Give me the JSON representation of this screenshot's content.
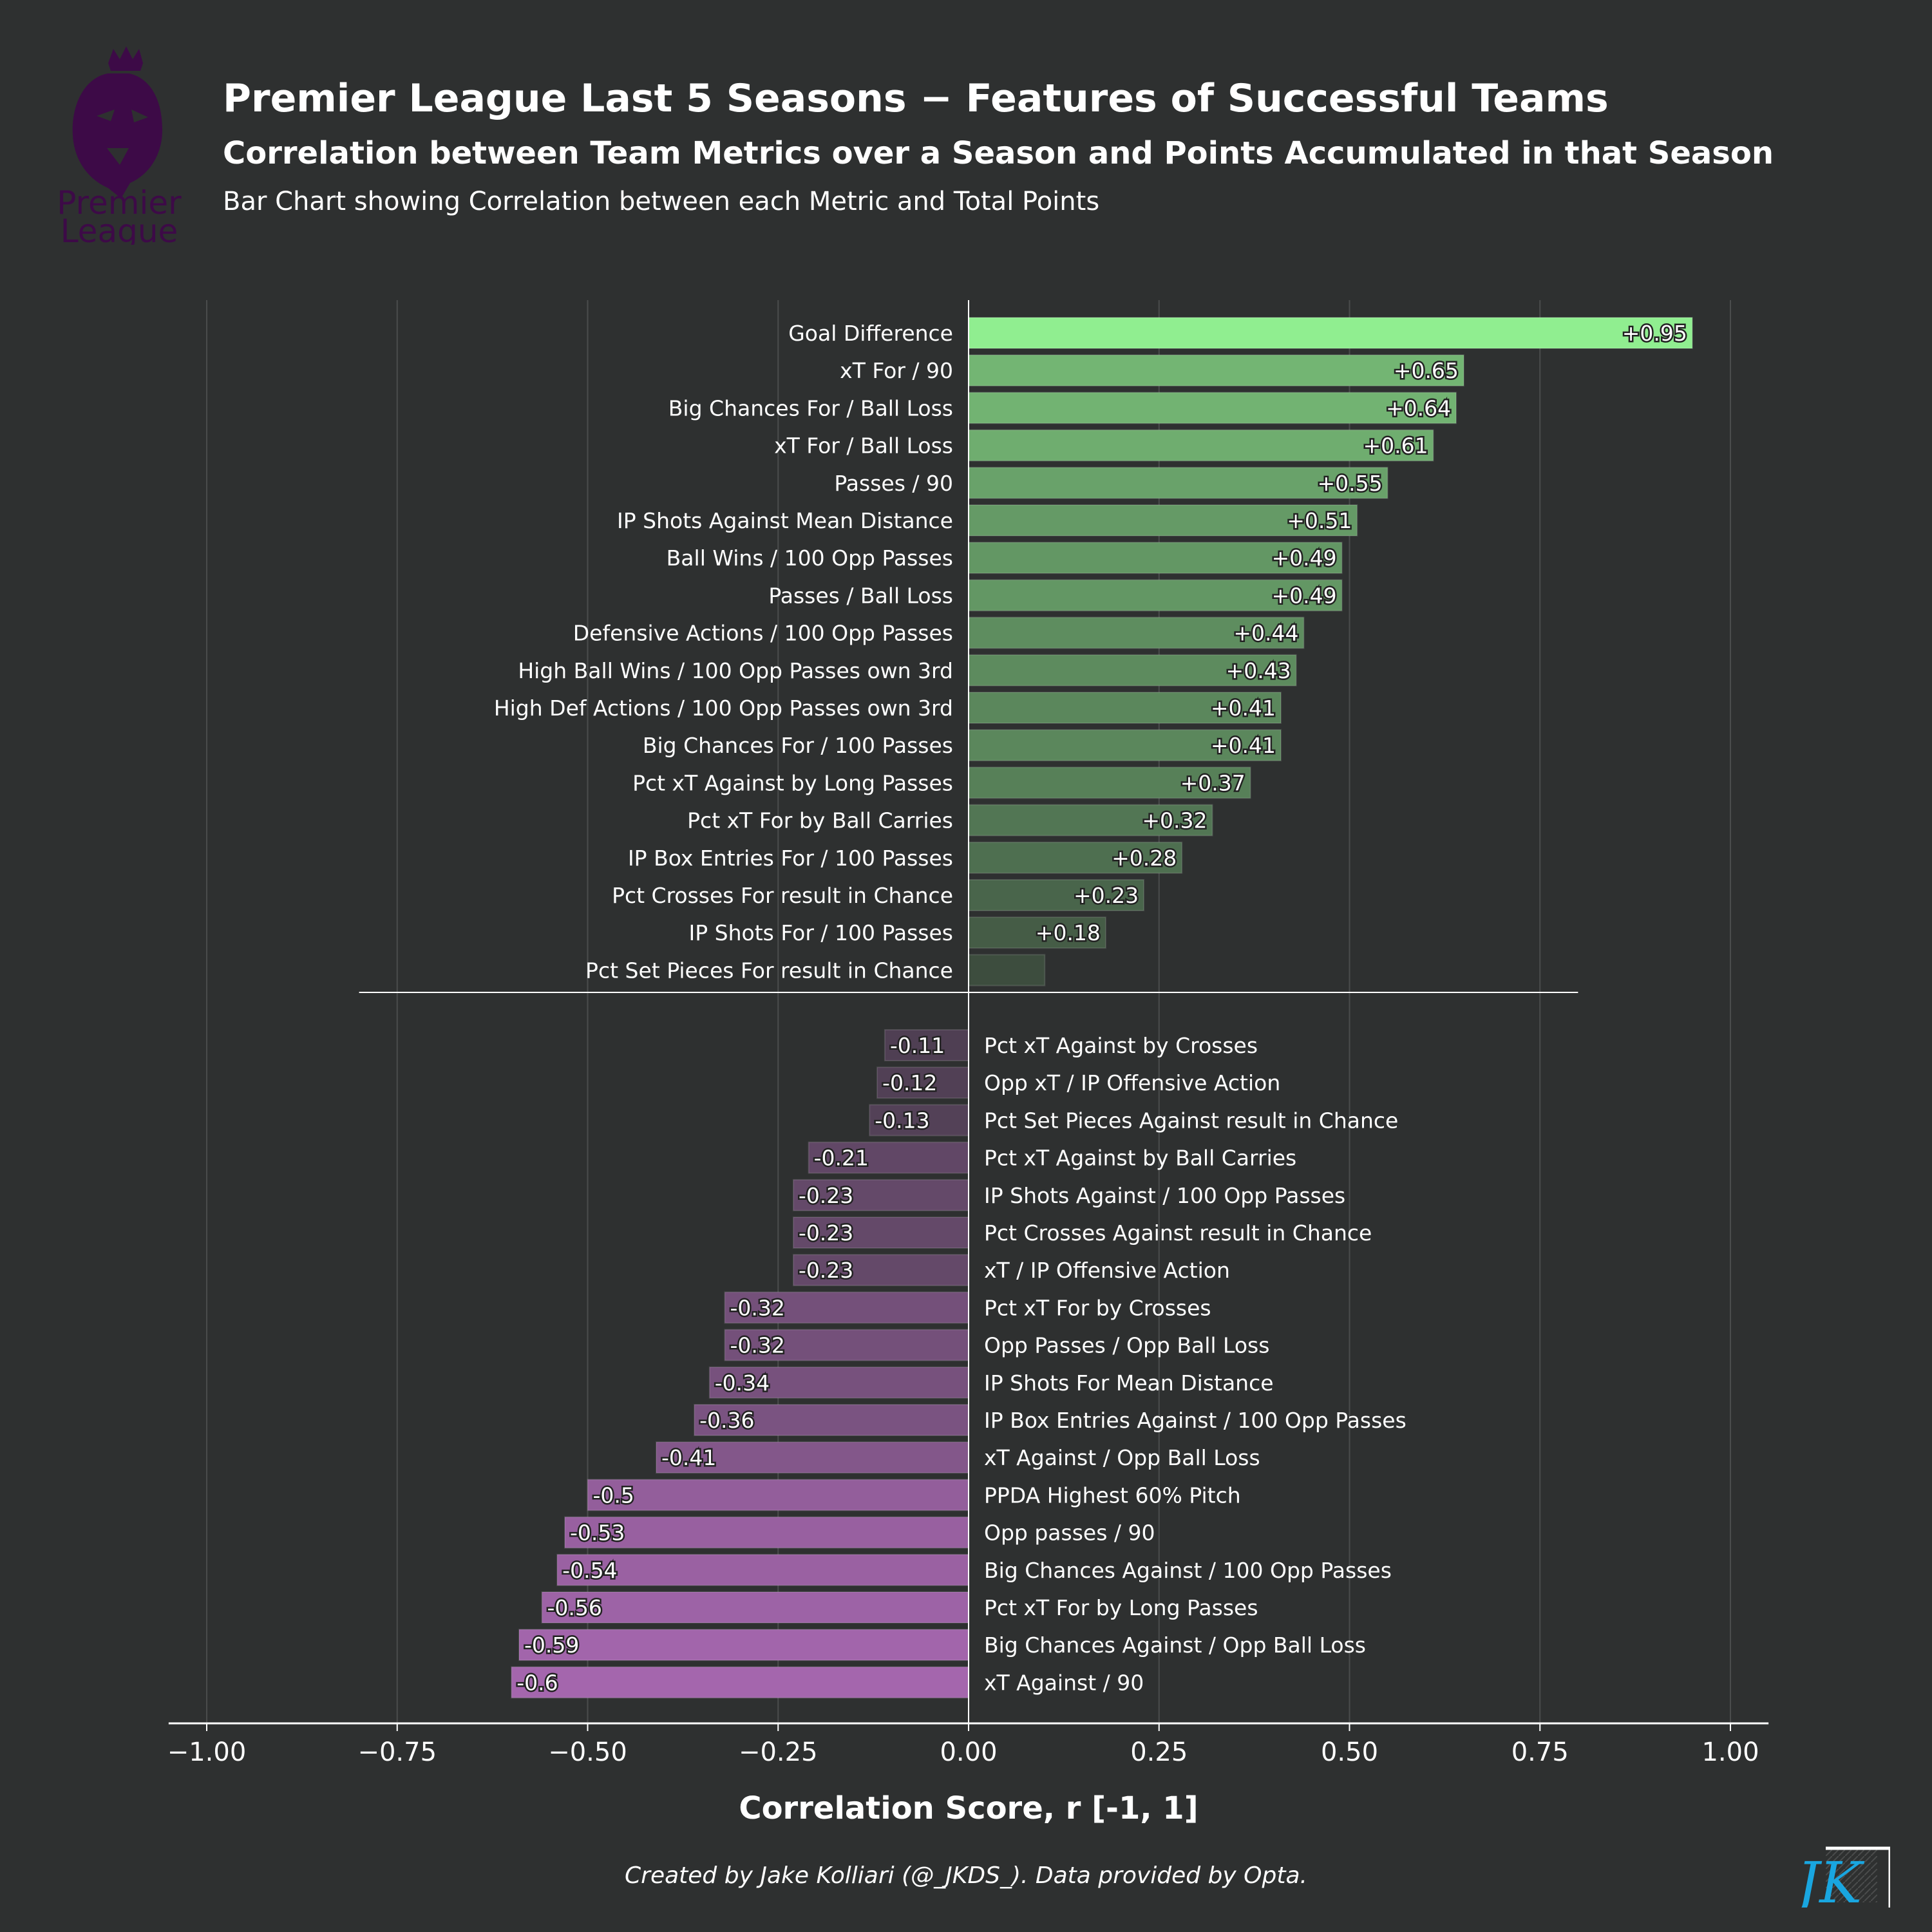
{
  "header": {
    "title": "Premier League Last 5 Seasons − Features of Successful Teams",
    "subtitle": "Correlation between Team Metrics over a Season and Points Accumulated in that Season",
    "description": "Bar Chart showing Correlation between each Metric and Total Points"
  },
  "logo": {
    "line1": "Premier",
    "line2": "League",
    "color": "#3d0a47"
  },
  "footer": {
    "credit": "Created by Jake Kolliari (@_JKDS_). Data provided by Opta.",
    "signature": "JK",
    "signature_color": "#19a6e0"
  },
  "chart_data": {
    "type": "bar",
    "orientation": "horizontal",
    "xlabel": "Correlation Score, r [-1, 1]",
    "xlim": [
      -1.05,
      1.05
    ],
    "xticks": [
      -1.0,
      -0.75,
      -0.5,
      -0.25,
      0.0,
      0.25,
      0.5,
      0.75,
      1.0
    ],
    "xtick_labels": [
      "−1.00",
      "−0.75",
      "−0.50",
      "−0.25",
      "0.00",
      "0.25",
      "0.50",
      "0.75",
      "1.00"
    ],
    "grid": "vertical",
    "colors": {
      "positive_max": "#90ee90",
      "negative_max": "#a466ad",
      "background": "#2e3030",
      "grid": "#4a4c4c",
      "axis": "#ffffff"
    },
    "positive": {
      "categories": [
        "Goal Difference",
        "xT For / 90",
        "Big Chances For / Ball Loss",
        "xT For / Ball Loss",
        "Passes / 90",
        "IP Shots Against Mean Distance",
        "Ball Wins / 100 Opp Passes",
        "Passes / Ball Loss",
        "Defensive Actions / 100 Opp Passes",
        "High Ball Wins / 100 Opp Passes own 3rd",
        "High Def Actions / 100 Opp Passes own 3rd",
        "Big Chances For / 100 Passes",
        "Pct xT Against by Long Passes",
        "Pct xT For by Ball Carries",
        "IP Box Entries For / 100 Passes",
        "Pct Crosses For result in Chance",
        "IP Shots For / 100 Passes",
        "Pct Set Pieces For result in Chance"
      ],
      "values": [
        0.95,
        0.65,
        0.64,
        0.61,
        0.55,
        0.51,
        0.49,
        0.49,
        0.44,
        0.43,
        0.41,
        0.41,
        0.37,
        0.32,
        0.28,
        0.23,
        0.18,
        0.1
      ],
      "labels": [
        "+0.95",
        "+0.65",
        "+0.64",
        "+0.61",
        "+0.55",
        "+0.51",
        "+0.49",
        "+0.49",
        "+0.44",
        "+0.43",
        "+0.41",
        "+0.41",
        "+0.37",
        "+0.32",
        "+0.28",
        "+0.23",
        "+0.18",
        ""
      ]
    },
    "negative": {
      "categories": [
        "Pct xT Against by Crosses",
        "Opp xT / IP Offensive Action",
        "Pct Set Pieces Against result in Chance",
        "Pct xT Against by Ball Carries",
        "IP Shots Against / 100 Opp Passes",
        "Pct Crosses Against result in Chance",
        "xT / IP Offensive Action",
        "Pct xT For by Crosses",
        "Opp Passes / Opp Ball Loss",
        "IP Shots For Mean Distance",
        "IP Box Entries Against / 100 Opp Passes",
        "xT Against / Opp Ball Loss",
        "PPDA Highest 60% Pitch",
        "Opp passes / 90",
        "Big Chances Against / 100 Opp Passes",
        "Pct xT For by Long Passes",
        "Big Chances Against / Opp Ball Loss",
        "xT Against / 90"
      ],
      "values": [
        -0.11,
        -0.12,
        -0.13,
        -0.21,
        -0.23,
        -0.23,
        -0.23,
        -0.32,
        -0.32,
        -0.34,
        -0.36,
        -0.41,
        -0.5,
        -0.53,
        -0.54,
        -0.56,
        -0.59,
        -0.6
      ],
      "labels": [
        "-0.11",
        "-0.12",
        "-0.13",
        "-0.21",
        "-0.23",
        "-0.23",
        "-0.23",
        "-0.32",
        "-0.32",
        "-0.34",
        "-0.36",
        "-0.41",
        "-0.5",
        "-0.53",
        "-0.54",
        "-0.56",
        "-0.59",
        "-0.6"
      ]
    }
  }
}
